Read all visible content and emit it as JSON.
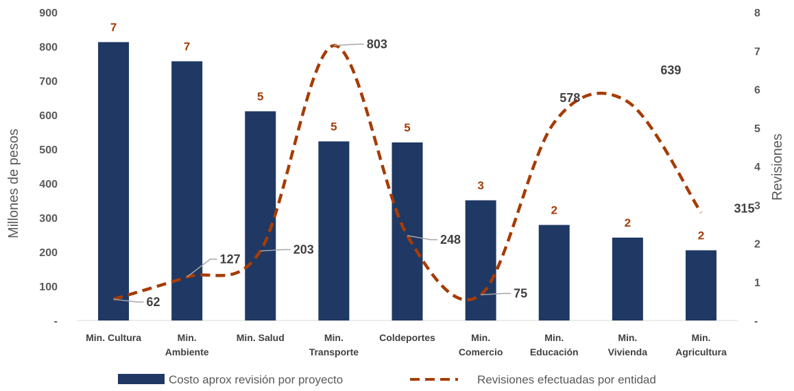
{
  "chart_data": {
    "type": "bar",
    "categories": [
      [
        "Min. Cultura"
      ],
      [
        "Min.",
        "Ambiente"
      ],
      [
        "Min. Salud"
      ],
      [
        "Min.",
        "Transporte"
      ],
      [
        "Coldeportes"
      ],
      [
        "Min.",
        "Comercio"
      ],
      [
        "Min.",
        "Educación"
      ],
      [
        "Min.",
        "Vivienda"
      ],
      [
        "Min.",
        "Agricultura"
      ]
    ],
    "series": [
      {
        "name": "Costo aprox revisión por proyecto",
        "type": "bar",
        "axis": "left",
        "color": "#1f3864",
        "values": [
          813,
          757,
          611,
          523,
          520,
          351,
          279,
          242,
          205
        ]
      },
      {
        "name": "Revisiones efectuadas por entidad",
        "type": "line",
        "axis": "right",
        "color": "#a63c06",
        "values": [
          62,
          127,
          203,
          803,
          248,
          75,
          578,
          639,
          315
        ]
      }
    ],
    "bar_labels": [
      "7",
      "7",
      "5",
      "5",
      "5",
      "3",
      "2",
      "2",
      "2"
    ],
    "line_labels": [
      "62",
      "127",
      "203",
      "803",
      "248",
      "75",
      "578",
      "639",
      "315"
    ],
    "y_left": {
      "label": "Millones de pesos",
      "ylim": [
        0,
        900
      ],
      "ticks": [
        0,
        100,
        200,
        300,
        400,
        500,
        600,
        700,
        800,
        900
      ],
      "tick_labels": [
        "-",
        "100",
        "200",
        "300",
        "400",
        "500",
        "600",
        "700",
        "800",
        "900"
      ]
    },
    "y_right": {
      "label": "Revisiones",
      "ylim": [
        0,
        8
      ],
      "tick_labels": [
        "-",
        "1",
        "2",
        "3",
        "4",
        "5",
        "6",
        "7",
        "8"
      ]
    },
    "legend": {
      "placement": "bottom",
      "items": [
        "Costo aprox revisión por proyecto",
        "Revisiones efectuadas por entidad"
      ]
    },
    "label_color": "#a63c06",
    "leader_color": "#a6a6a6",
    "axis_color": "#d9d9d9"
  }
}
